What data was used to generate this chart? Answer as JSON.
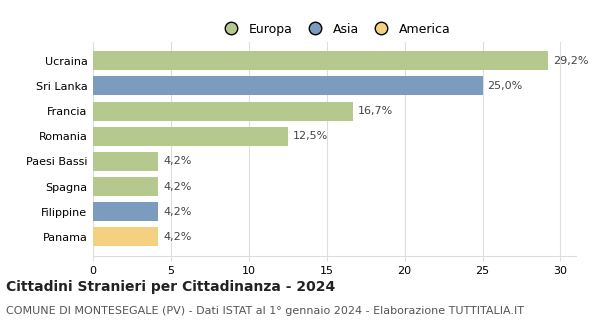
{
  "categories": [
    "Ucraina",
    "Sri Lanka",
    "Francia",
    "Romania",
    "Paesi Bassi",
    "Spagna",
    "Filippine",
    "Panama"
  ],
  "values": [
    29.2,
    25.0,
    16.7,
    12.5,
    4.2,
    4.2,
    4.2,
    4.2
  ],
  "labels": [
    "29,2%",
    "25,0%",
    "16,7%",
    "12,5%",
    "4,2%",
    "4,2%",
    "4,2%",
    "4,2%"
  ],
  "colors": [
    "#b5c98e",
    "#7b9bbf",
    "#b5c98e",
    "#b5c98e",
    "#b5c98e",
    "#b5c98e",
    "#7b9bbf",
    "#f5d080"
  ],
  "legend_items": [
    {
      "label": "Europa",
      "color": "#b5c98e"
    },
    {
      "label": "Asia",
      "color": "#7b9bbf"
    },
    {
      "label": "America",
      "color": "#f5d080"
    }
  ],
  "xlim": [
    0,
    31
  ],
  "xticks": [
    0,
    5,
    10,
    15,
    20,
    25,
    30
  ],
  "title": "Cittadini Stranieri per Cittadinanza - 2024",
  "subtitle": "COMUNE DI MONTESEGALE (PV) - Dati ISTAT al 1° gennaio 2024 - Elaborazione TUTTITALIA.IT",
  "title_fontsize": 10,
  "subtitle_fontsize": 8,
  "label_fontsize": 8,
  "tick_fontsize": 8,
  "legend_fontsize": 9,
  "bar_height": 0.75,
  "background_color": "#ffffff",
  "grid_color": "#dddddd"
}
